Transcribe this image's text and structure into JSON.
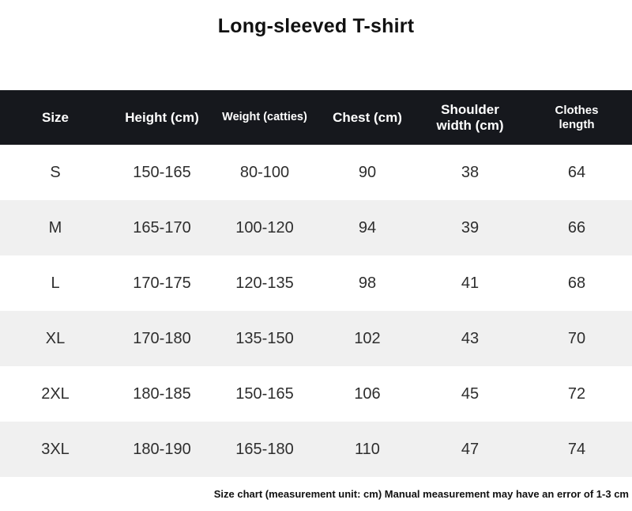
{
  "page": {
    "title": "Long-sleeved T-shirt"
  },
  "table": {
    "headers": [
      "Size",
      "Height (cm)",
      "Weight (catties)",
      "Chest (cm)",
      "Shoulder width (cm)",
      "Clothes length"
    ],
    "rows": [
      [
        "S",
        "150-165",
        "80-100",
        "90",
        "38",
        "64"
      ],
      [
        "M",
        "165-170",
        "100-120",
        "94",
        "39",
        "66"
      ],
      [
        "L",
        "170-175",
        "120-135",
        "98",
        "41",
        "68"
      ],
      [
        "XL",
        "170-180",
        "135-150",
        "102",
        "43",
        "70"
      ],
      [
        "2XL",
        "180-185",
        "150-165",
        "106",
        "45",
        "72"
      ],
      [
        "3XL",
        "180-190",
        "165-180",
        "110",
        "47",
        "74"
      ]
    ]
  },
  "footer": {
    "note": "Size chart (measurement unit: cm) Manual measurement may have an error of 1-3 cm"
  },
  "colors": {
    "header_bg": "#16181d",
    "header_text": "#ffffff",
    "row_bg": "#ffffff",
    "row_alt_bg": "#f0f0f0",
    "cell_text": "#2e2e2e",
    "title_text": "#111111"
  }
}
